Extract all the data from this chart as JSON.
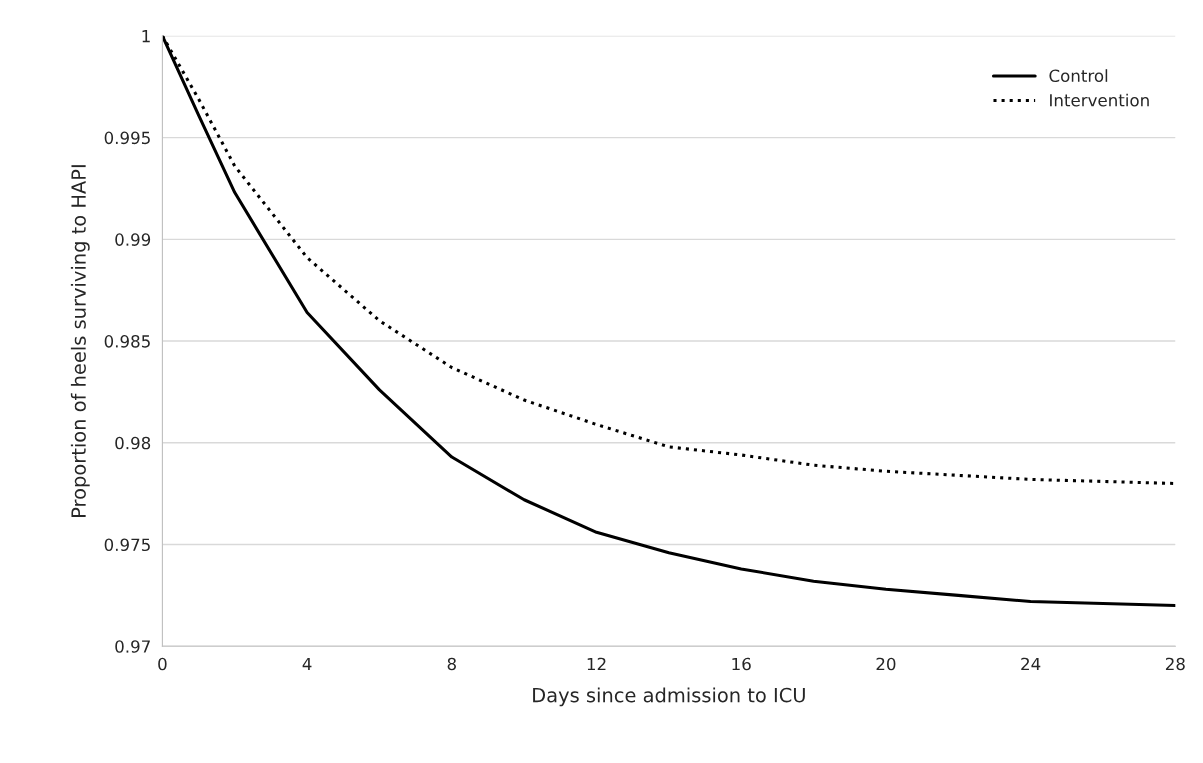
{
  "chart_data": {
    "type": "line",
    "xlabel": "Days since admission to ICU",
    "ylabel": "Proportion of heels surviving to HAPI",
    "x": [
      0,
      1,
      2,
      4,
      6,
      8,
      10,
      12,
      14,
      16,
      18,
      20,
      22,
      24,
      26,
      28
    ],
    "series": [
      {
        "name": "Control",
        "color": "#000000",
        "line_style": "solid",
        "values": [
          1,
          0.9961,
          0.9923,
          0.9864,
          0.9826,
          0.9793,
          0.9772,
          0.9756,
          0.9746,
          0.9738,
          0.9732,
          0.9728,
          0.9725,
          0.9722,
          0.9721,
          0.972
        ]
      },
      {
        "name": "Intervention",
        "color": "#000000",
        "line_style": "dotted",
        "values": [
          1,
          0.9969,
          0.9936,
          0.9891,
          0.986,
          0.9837,
          0.9821,
          0.9809,
          0.9798,
          0.9794,
          0.9789,
          0.9786,
          0.9784,
          0.9782,
          0.9781,
          0.978
        ]
      }
    ],
    "xlim": [
      0,
      28
    ],
    "xticks": [
      0,
      4,
      8,
      12,
      16,
      20,
      24,
      28
    ],
    "ylim": [
      0.97,
      1
    ],
    "yticks": [
      0.97,
      0.975,
      0.98,
      0.985,
      0.99,
      0.995,
      1
    ],
    "grid": "y",
    "legend": "top right",
    "marker": "none"
  }
}
